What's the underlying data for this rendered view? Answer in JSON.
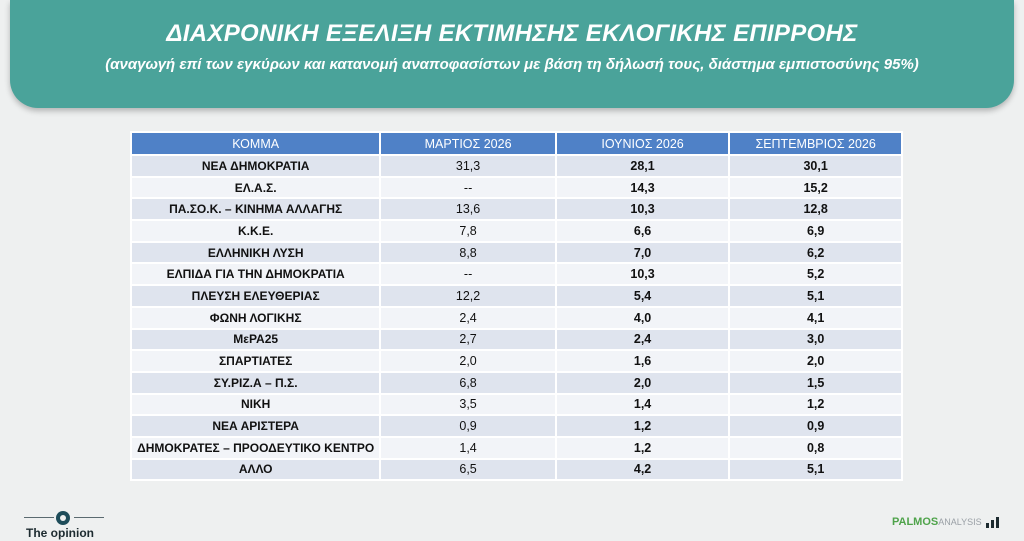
{
  "header": {
    "title": "ΔΙΑΧΡΟΝΙΚΗ ΕΞΕΛΙΞΗ ΕΚΤΙΜΗΣΗΣ ΕΚΛΟΓΙΚΗΣ ΕΠΙΡΡΟΗΣ",
    "subtitle": "(αναγωγή επί των εγκύρων και κατανομή αναποφασίστων με βάση τη δήλωσή τους, διάστημα εμπιστοσύνης 95%)"
  },
  "table": {
    "columns": [
      "ΚΟΜΜΑ",
      "ΜΑΡΤΙΟΣ 2026",
      "ΙΟΥΝΙΟΣ 2026",
      "ΣΕΠΤΕΜΒΡΙΟΣ 2026"
    ],
    "rows": [
      [
        "ΝΕΑ ΔΗΜΟΚΡΑΤΙΑ",
        "31,3",
        "28,1",
        "30,1"
      ],
      [
        "ΕΛ.Α.Σ.",
        "--",
        "14,3",
        "15,2"
      ],
      [
        "ΠΑ.ΣΟ.Κ. – ΚΙΝΗΜΑ ΑΛΛΑΓΗΣ",
        "13,6",
        "10,3",
        "12,8"
      ],
      [
        "Κ.Κ.Ε.",
        "7,8",
        "6,6",
        "6,9"
      ],
      [
        "ΕΛΛΗΝΙΚΗ ΛΥΣΗ",
        "8,8",
        "7,0",
        "6,2"
      ],
      [
        "ΕΛΠΙΔΑ ΓΙΑ ΤΗΝ ΔΗΜΟΚΡΑΤΙΑ",
        "--",
        "10,3",
        "5,2"
      ],
      [
        "ΠΛΕΥΣΗ ΕΛΕΥΘΕΡΙΑΣ",
        "12,2",
        "5,4",
        "5,1"
      ],
      [
        "ΦΩΝΗ ΛΟΓΙΚΗΣ",
        "2,4",
        "4,0",
        "4,1"
      ],
      [
        "ΜεΡΑ25",
        "2,7",
        "2,4",
        "3,0"
      ],
      [
        "ΣΠΑΡΤΙΑΤΕΣ",
        "2,0",
        "1,6",
        "2,0"
      ],
      [
        "ΣΥ.ΡΙΖ.Α – Π.Σ.",
        "6,8",
        "2,0",
        "1,5"
      ],
      [
        "ΝΙΚΗ",
        "3,5",
        "1,4",
        "1,2"
      ],
      [
        "ΝΕΑ ΑΡΙΣΤΕΡΑ",
        "0,9",
        "1,2",
        "0,9"
      ],
      [
        "ΔΗΜΟΚΡΑΤΕΣ – ΠΡΟΟΔΕΥΤΙΚΟ ΚΕΝΤΡΟ",
        "1,4",
        "1,2",
        "0,8"
      ],
      [
        "ΑΛΛΟ",
        "6,5",
        "4,2",
        "5,1"
      ]
    ]
  },
  "footer": {
    "left_logo": "The opinion",
    "right_logo_main": "PALMOS",
    "right_logo_rest": "ANALYSIS"
  },
  "colors": {
    "header_bg": "#4aa39a",
    "table_header_bg": "#4f81c7",
    "row_odd": "#dfe4ee",
    "row_even": "#f2f4f8"
  }
}
